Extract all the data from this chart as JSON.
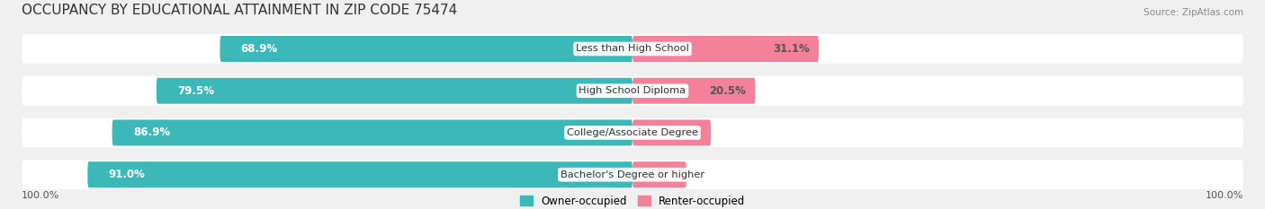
{
  "title": "OCCUPANCY BY EDUCATIONAL ATTAINMENT IN ZIP CODE 75474",
  "source": "Source: ZipAtlas.com",
  "categories": [
    "Less than High School",
    "High School Diploma",
    "College/Associate Degree",
    "Bachelor's Degree or higher"
  ],
  "owner_values": [
    68.9,
    79.5,
    86.9,
    91.0
  ],
  "renter_values": [
    31.1,
    20.5,
    13.1,
    9.0
  ],
  "owner_color": "#3db8b8",
  "renter_color": "#f4819a",
  "bg_color": "#f0f0f0",
  "bar_bg_color": "#ffffff",
  "title_fontsize": 11,
  "label_fontsize": 8.5,
  "tick_fontsize": 8,
  "legend_label_owner": "Owner-occupied",
  "legend_label_renter": "Renter-occupied",
  "left_axis_label": "100.0%",
  "right_axis_label": "100.0%",
  "bar_height": 0.62,
  "bar_gap": 0.18
}
